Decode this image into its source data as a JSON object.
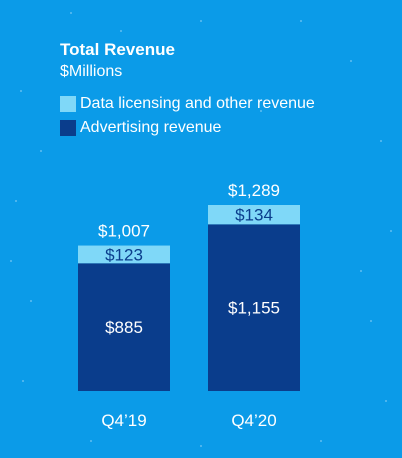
{
  "chart_data": {
    "type": "bar",
    "stacked": true,
    "title": "Total Revenue",
    "subtitle": "$Millions",
    "categories": [
      "Q4’19",
      "Q4’20"
    ],
    "series": [
      {
        "name": "Advertising revenue",
        "values": [
          885,
          1155
        ],
        "labels": [
          "$885",
          "$1,155"
        ],
        "color": "#0a3d8c"
      },
      {
        "name": "Data licensing and other revenue",
        "values": [
          123,
          134
        ],
        "labels": [
          "$123",
          "$134"
        ],
        "color": "#7fd8f8"
      }
    ],
    "totals": [
      1007,
      1289
    ],
    "total_labels": [
      "$1,007",
      "$1,289"
    ],
    "legend_position": "top-left",
    "grid": false
  },
  "colors": {
    "background": "#0b9be8",
    "advertising": "#0a3d8c",
    "data_licensing": "#7fd8f8",
    "text": "#ffffff"
  }
}
